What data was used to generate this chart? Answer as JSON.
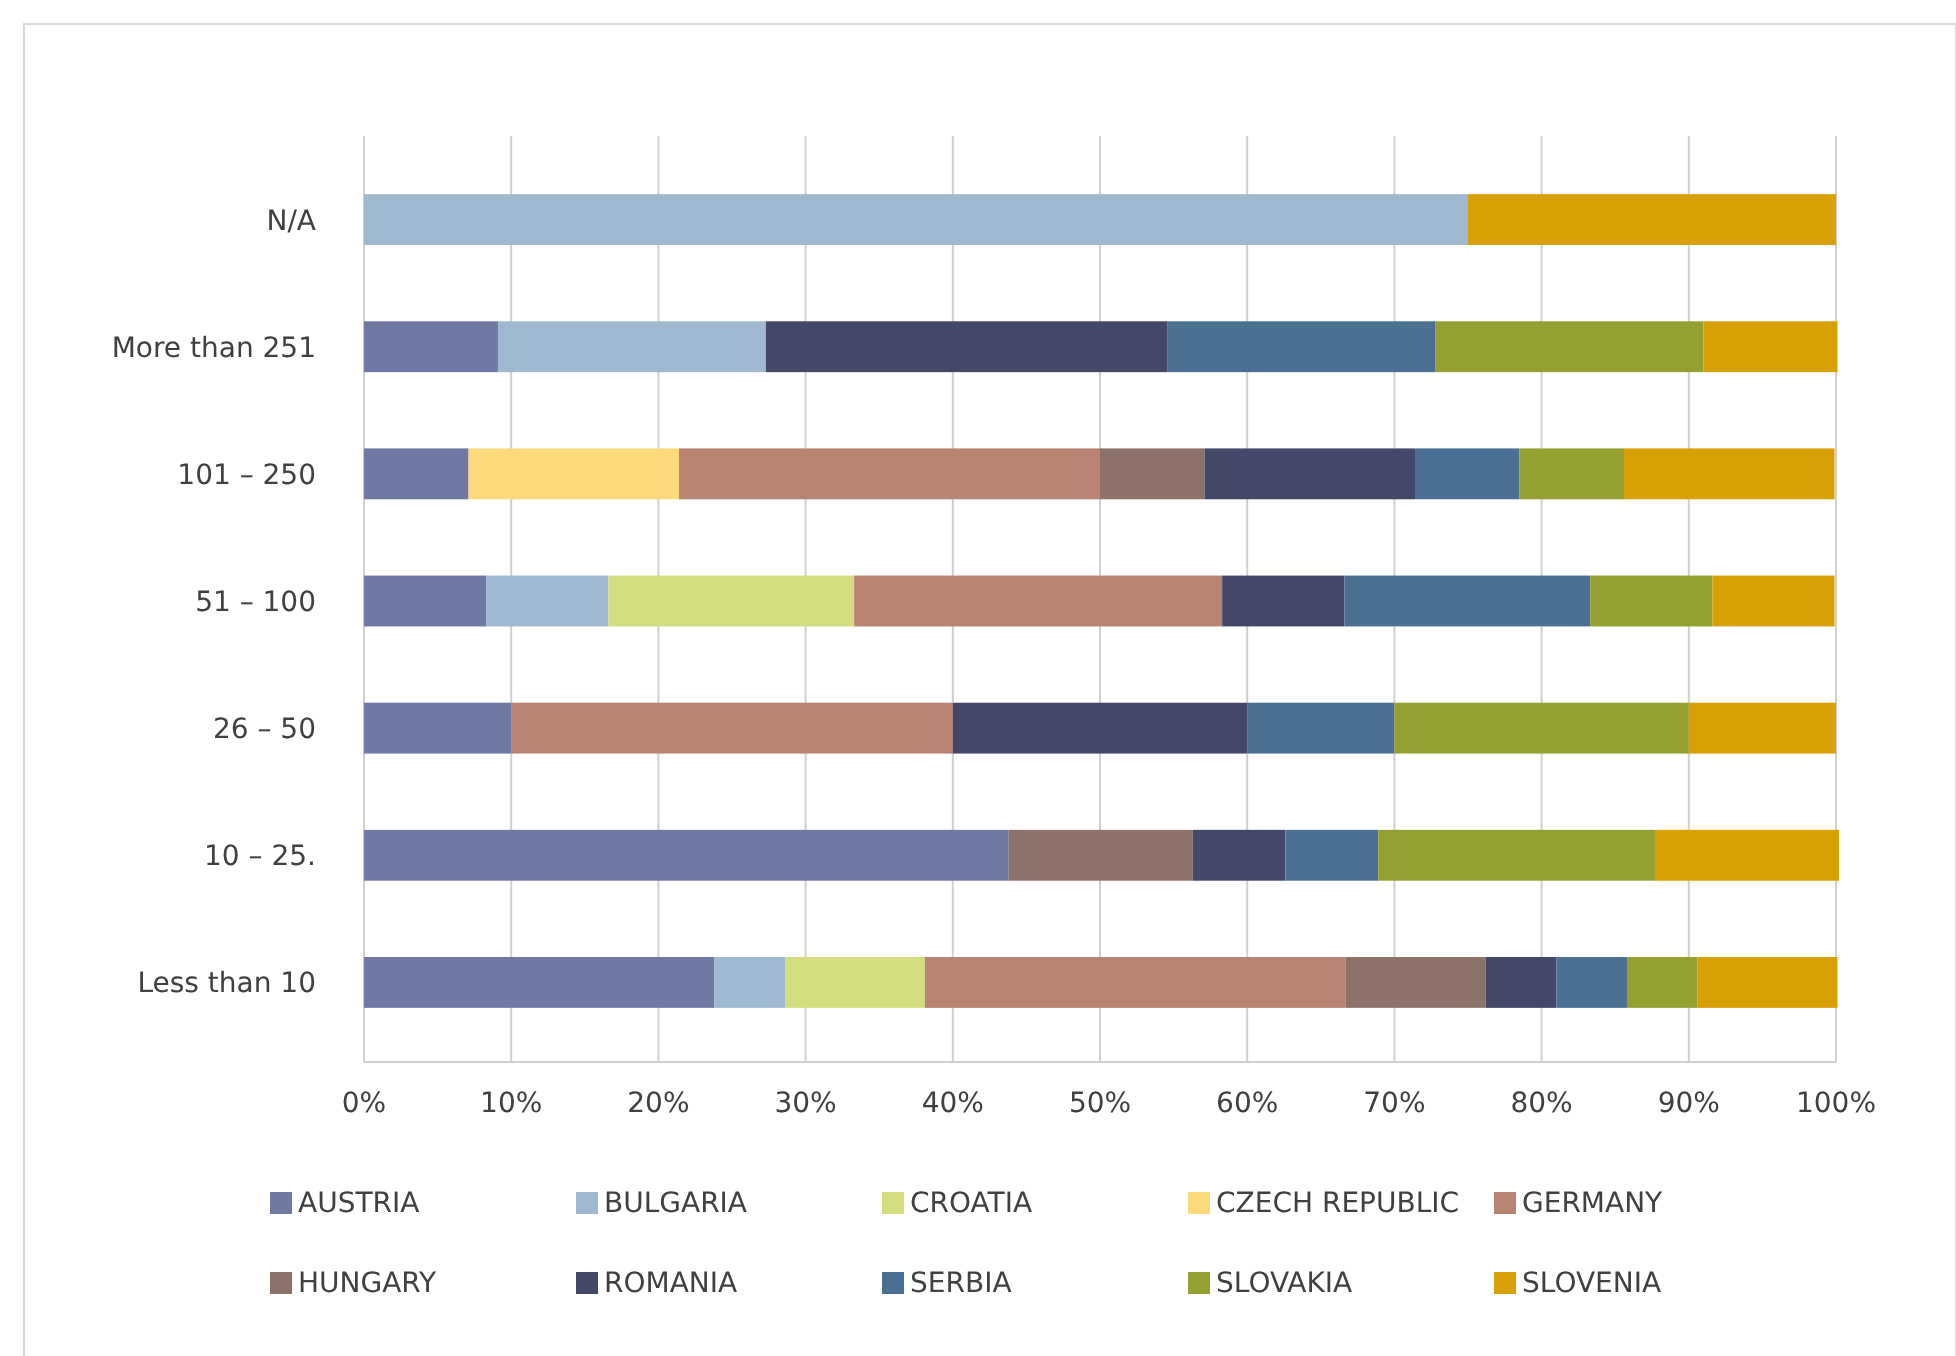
{
  "chart_data": {
    "type": "bar",
    "orientation": "horizontal",
    "stacked": true,
    "categories": [
      "N/A",
      "More than 251",
      "101 – 250",
      "51 – 100",
      "26 – 50",
      "10 – 25.",
      "Less than 10"
    ],
    "xlim": [
      0,
      100
    ],
    "xticks": [
      {
        "value": 0,
        "label": "0%"
      },
      {
        "value": 10,
        "label": "10%"
      },
      {
        "value": 20,
        "label": "20%"
      },
      {
        "value": 30,
        "label": "30%"
      },
      {
        "value": 40,
        "label": "40%"
      },
      {
        "value": 50,
        "label": "50%"
      },
      {
        "value": 60,
        "label": "60%"
      },
      {
        "value": 70,
        "label": "70%"
      },
      {
        "value": 80,
        "label": "80%"
      },
      {
        "value": 90,
        "label": "90%"
      },
      {
        "value": 100,
        "label": "100%"
      }
    ],
    "grid": "x",
    "legend": "bottom",
    "series": [
      {
        "name": "AUSTRIA",
        "color": "#7079a3",
        "values": [
          null,
          9.1,
          7.1,
          8.3,
          10,
          43.8,
          23.8
        ]
      },
      {
        "name": "BULGARIA",
        "color": "#9fbad0",
        "values": [
          75,
          18.2,
          null,
          8.3,
          null,
          null,
          4.8
        ]
      },
      {
        "name": "CROATIA",
        "color": "#d3dc7e",
        "values": [
          null,
          null,
          null,
          16.7,
          null,
          null,
          9.5
        ]
      },
      {
        "name": "CZECH REPUBLIC",
        "color": "#fcd97a",
        "values": [
          null,
          null,
          14.3,
          null,
          null,
          null,
          null
        ]
      },
      {
        "name": "GERMANY",
        "color": "#b88370",
        "values": [
          null,
          null,
          28.6,
          25,
          30,
          null,
          28.6
        ]
      },
      {
        "name": "HUNGARY",
        "color": "#8c7268",
        "values": [
          null,
          null,
          7.1,
          null,
          null,
          12.5,
          9.5
        ]
      },
      {
        "name": "ROMANIA",
        "color": "#434868",
        "values": [
          null,
          27.3,
          14.3,
          8.3,
          20,
          6.3,
          4.8
        ]
      },
      {
        "name": "SERBIA",
        "color": "#4a7194",
        "values": [
          null,
          18.2,
          7.1,
          16.7,
          10,
          6.3,
          4.8
        ]
      },
      {
        "name": "SLOVAKIA",
        "color": "#94a130",
        "values": [
          null,
          18.2,
          7.1,
          8.3,
          20,
          18.8,
          4.8
        ]
      },
      {
        "name": "SLOVENIA",
        "color": "#d8a005",
        "values": [
          25,
          9.1,
          14.3,
          8.3,
          10,
          12.5,
          9.5
        ]
      }
    ]
  }
}
